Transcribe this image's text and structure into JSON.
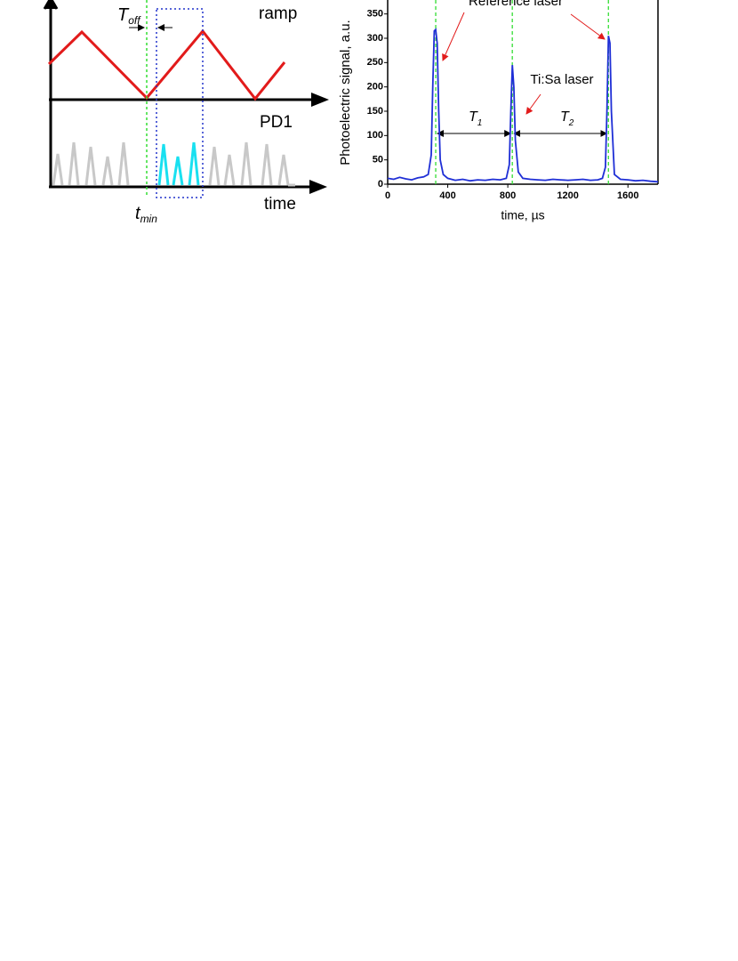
{
  "diagram": {
    "toff": {
      "main": "T",
      "sub": "off"
    },
    "ramp": "ramp",
    "pd1": "PD1",
    "time": "time",
    "tmin": {
      "main": "t",
      "sub": "min"
    }
  },
  "chart_data": {
    "type": "line",
    "y_label": "Photoelectric signal, a.u.",
    "x_label": "time, µs",
    "annotations": {
      "reference": "Reference laser",
      "tisa": "Ti:Sa laser",
      "t1": {
        "main": "T",
        "sub": "1"
      },
      "t2": {
        "main": "T",
        "sub": "2"
      }
    },
    "x": [
      0,
      40,
      80,
      120,
      160,
      200,
      240,
      270,
      290,
      300,
      310,
      320,
      330,
      340,
      350,
      370,
      400,
      450,
      500,
      550,
      600,
      650,
      700,
      750,
      790,
      810,
      820,
      830,
      840,
      850,
      870,
      900,
      950,
      1000,
      1050,
      1100,
      1150,
      1200,
      1250,
      1300,
      1350,
      1400,
      1430,
      1450,
      1460,
      1470,
      1480,
      1490,
      1510,
      1550,
      1600,
      1650,
      1700,
      1750,
      1800
    ],
    "values": [
      12,
      10,
      14,
      11,
      9,
      13,
      15,
      20,
      60,
      200,
      315,
      318,
      290,
      150,
      50,
      20,
      12,
      8,
      10,
      7,
      9,
      8,
      10,
      9,
      12,
      40,
      150,
      245,
      200,
      90,
      25,
      12,
      10,
      9,
      8,
      10,
      9,
      8,
      9,
      10,
      8,
      9,
      12,
      35,
      150,
      305,
      290,
      150,
      20,
      10,
      9,
      7,
      8,
      6,
      5
    ],
    "color": "#1f2fd6",
    "reference_lines": [
      320,
      830,
      1470
    ],
    "reference_color": "#33dd33",
    "xlim": [
      0,
      1800
    ],
    "ylim": [
      0,
      375
    ],
    "xticks": [
      0,
      400,
      800,
      1200,
      1600
    ],
    "yticks": [
      0,
      50,
      100,
      150,
      200,
      250,
      300,
      350
    ]
  }
}
